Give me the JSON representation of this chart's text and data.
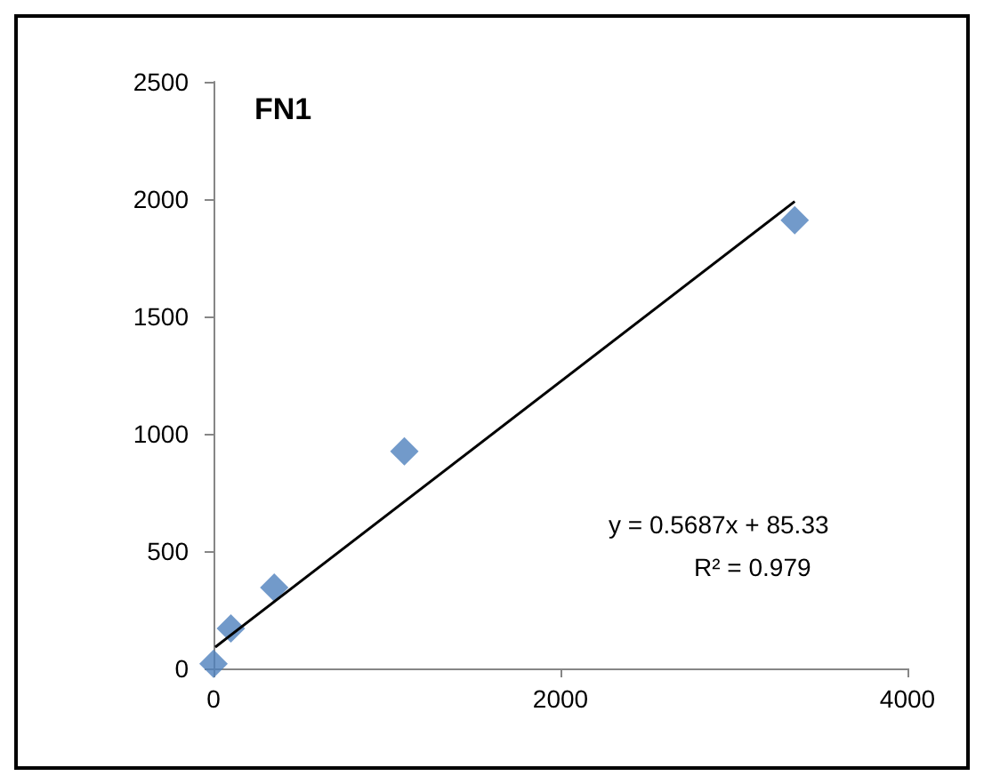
{
  "chart_data": {
    "type": "scatter",
    "title": "FN1",
    "xlim": [
      0,
      4000
    ],
    "ylim": [
      0,
      2500
    ],
    "xticks": [
      0,
      2000,
      4000
    ],
    "yticks": [
      0,
      500,
      1000,
      1500,
      2000,
      2500
    ],
    "grid": false,
    "marker": "diamond",
    "series": [
      {
        "color": "#4f81bd",
        "x": [
          3350,
          1100,
          350,
          100,
          0
        ],
        "values": [
          1910,
          925,
          345,
          170,
          20
        ]
      },
      {
        "type": "line",
        "color": "#000000",
        "x": [
          10,
          3350
        ],
        "values": [
          91,
          1990
        ],
        "marker": "none"
      }
    ],
    "annotations": [
      "y = 0.5687x + 85.33",
      "R² = 0.979"
    ]
  }
}
